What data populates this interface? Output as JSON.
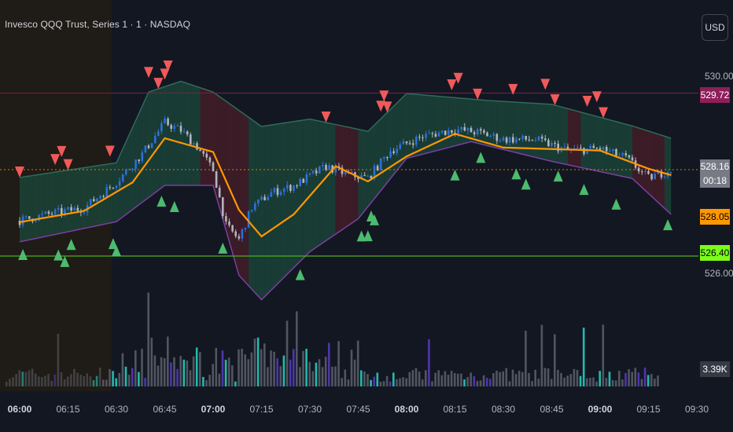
{
  "header": {
    "symbol_title": "Invesco QQQ Trust, Series 1 · 1 · NASDAQ",
    "currency_button": "USD"
  },
  "price_axis": {
    "ticks": [
      "530.00",
      "526.00"
    ],
    "badges": {
      "upper_line": "529.72",
      "last_price": "528.16",
      "countdown": "00:18",
      "moving_average": "528.05",
      "lower_line": "526.40",
      "volume": "3.39K"
    }
  },
  "colors": {
    "background": "#131722",
    "premarket_shade": "#1f1b16",
    "upper_line": "#7a1f4a",
    "upper_badge": "#8e1e59",
    "lower_line": "#4caf1f",
    "lower_badge": "#7cfc1a",
    "moving_average": "#ff9800",
    "last_price_badge": "#787b86",
    "up_candle": "#2f6fd6",
    "down_candle": "#b2b5be",
    "sell_marker": "#f05a5a",
    "buy_marker": "#4cbb6e",
    "volume_gray": "#5d606b",
    "volume_teal": "#26d7c4",
    "volume_purple": "#5b3bc4",
    "band_green": "#1c4a3c",
    "band_red": "#4a1f2a"
  },
  "chart_data": {
    "type": "candlestick",
    "symbol": "QQQ",
    "x_labels": [
      "06:00",
      "06:15",
      "06:30",
      "06:45",
      "07:00",
      "07:15",
      "07:30",
      "07:45",
      "08:00",
      "08:15",
      "08:30",
      "08:45",
      "09:00",
      "09:15",
      "09:30"
    ],
    "bold_x_labels": [
      "06:00",
      "07:00",
      "08:00",
      "09:00"
    ],
    "y_ticks": [
      530.0,
      526.0
    ],
    "horizontal_lines": [
      529.72,
      526.4
    ],
    "last_price": 528.16,
    "moving_average_last": 528.05,
    "volume_last": "3.39K",
    "price_path": [
      {
        "time": "06:00",
        "price": 527.12
      },
      {
        "time": "06:10",
        "price": 527.27
      },
      {
        "time": "06:20",
        "price": 527.38
      },
      {
        "time": "06:30",
        "price": 527.91
      },
      {
        "time": "06:38",
        "price": 528.48
      },
      {
        "time": "06:45",
        "price": 529.12
      },
      {
        "time": "06:50",
        "price": 528.96
      },
      {
        "time": "06:55",
        "price": 528.63
      },
      {
        "time": "07:00",
        "price": 528.15
      },
      {
        "time": "07:04",
        "price": 527.02
      },
      {
        "time": "07:08",
        "price": 526.74
      },
      {
        "time": "07:12",
        "price": 527.39
      },
      {
        "time": "07:18",
        "price": 527.69
      },
      {
        "time": "07:25",
        "price": 527.83
      },
      {
        "time": "07:35",
        "price": 528.23
      },
      {
        "time": "07:42",
        "price": 528.05
      },
      {
        "time": "07:48",
        "price": 527.99
      },
      {
        "time": "07:55",
        "price": 528.55
      },
      {
        "time": "08:05",
        "price": 528.84
      },
      {
        "time": "08:15",
        "price": 528.98
      },
      {
        "time": "08:22",
        "price": 528.92
      },
      {
        "time": "08:30",
        "price": 528.78
      },
      {
        "time": "08:40",
        "price": 528.77
      },
      {
        "time": "08:50",
        "price": 528.55
      },
      {
        "time": "09:00",
        "price": 528.59
      },
      {
        "time": "09:08",
        "price": 528.4
      },
      {
        "time": "09:15",
        "price": 527.99
      },
      {
        "time": "09:22",
        "price": 528.16
      }
    ],
    "moving_average_path": [
      {
        "time": "06:00",
        "price": 527.09
      },
      {
        "time": "06:20",
        "price": 527.32
      },
      {
        "time": "06:35",
        "price": 527.9
      },
      {
        "time": "06:45",
        "price": 528.8
      },
      {
        "time": "07:00",
        "price": 528.52
      },
      {
        "time": "07:08",
        "price": 527.34
      },
      {
        "time": "07:15",
        "price": 526.8
      },
      {
        "time": "07:25",
        "price": 527.25
      },
      {
        "time": "07:38",
        "price": 528.23
      },
      {
        "time": "07:48",
        "price": 527.92
      },
      {
        "time": "08:00",
        "price": 528.43
      },
      {
        "time": "08:15",
        "price": 528.89
      },
      {
        "time": "08:30",
        "price": 528.61
      },
      {
        "time": "09:00",
        "price": 528.55
      },
      {
        "time": "09:15",
        "price": 528.18
      },
      {
        "time": "09:22",
        "price": 528.05
      }
    ],
    "band_upper": [
      {
        "time": "06:00",
        "price": 528.0
      },
      {
        "time": "06:30",
        "price": 528.3
      },
      {
        "time": "06:40",
        "price": 529.74
      },
      {
        "time": "06:50",
        "price": 529.96
      },
      {
        "time": "07:00",
        "price": 529.74
      },
      {
        "time": "07:15",
        "price": 529.04
      },
      {
        "time": "07:30",
        "price": 529.19
      },
      {
        "time": "07:48",
        "price": 528.94
      },
      {
        "time": "08:00",
        "price": 529.71
      },
      {
        "time": "08:25",
        "price": 529.57
      },
      {
        "time": "08:45",
        "price": 529.49
      },
      {
        "time": "09:10",
        "price": 529.05
      },
      {
        "time": "09:22",
        "price": 528.8
      }
    ],
    "band_lower": [
      {
        "time": "06:00",
        "price": 526.69
      },
      {
        "time": "06:30",
        "price": 527.1
      },
      {
        "time": "06:45",
        "price": 527.84
      },
      {
        "time": "07:00",
        "price": 527.84
      },
      {
        "time": "07:08",
        "price": 526.01
      },
      {
        "time": "07:15",
        "price": 525.51
      },
      {
        "time": "07:30",
        "price": 526.49
      },
      {
        "time": "07:45",
        "price": 527.16
      },
      {
        "time": "08:00",
        "price": 528.39
      },
      {
        "time": "08:20",
        "price": 528.73
      },
      {
        "time": "08:45",
        "price": 528.33
      },
      {
        "time": "09:10",
        "price": 527.98
      },
      {
        "time": "09:22",
        "price": 527.25
      }
    ],
    "sell_signals": [
      "06:00",
      "06:11",
      "06:13",
      "06:15",
      "06:28",
      "06:40",
      "06:43",
      "06:45",
      "06:46",
      "07:35",
      "07:52",
      "07:53",
      "07:54",
      "08:14",
      "08:16",
      "08:22",
      "08:33",
      "08:43",
      "08:46",
      "08:56",
      "08:59",
      "09:01"
    ],
    "buy_signals": [
      "06:01",
      "06:12",
      "06:14",
      "06:16",
      "06:29",
      "06:30",
      "06:44",
      "06:48",
      "07:03",
      "07:27",
      "07:46",
      "07:48",
      "07:49",
      "07:50",
      "08:15",
      "08:23",
      "08:34",
      "08:37",
      "08:47",
      "08:55",
      "09:05",
      "09:21"
    ]
  }
}
